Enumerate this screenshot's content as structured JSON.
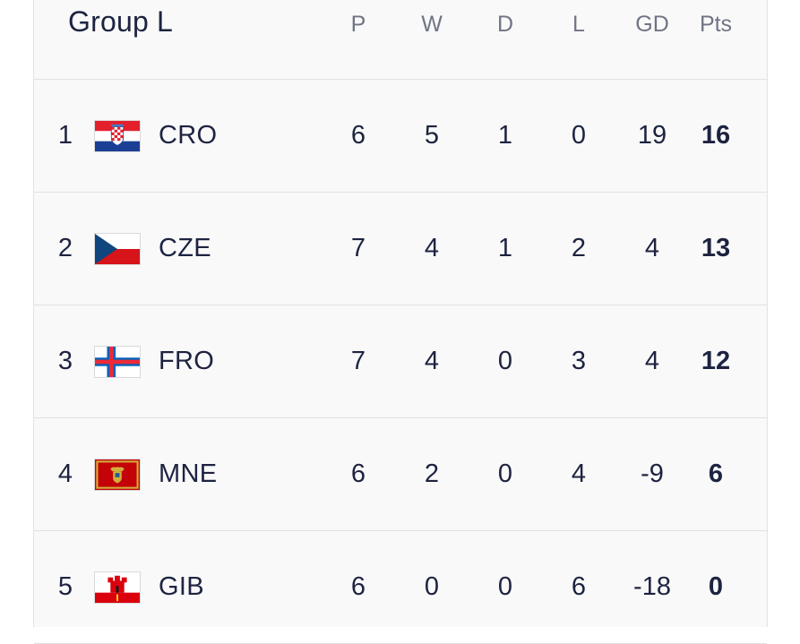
{
  "table": {
    "title": "Group L",
    "columns": [
      "P",
      "W",
      "D",
      "L",
      "GD",
      "Pts"
    ],
    "rows": [
      {
        "pos": "1",
        "team": "CRO",
        "flag_icon": "croatia-flag-icon",
        "p": "6",
        "w": "5",
        "d": "1",
        "l": "0",
        "gd": "19",
        "pts": "16"
      },
      {
        "pos": "2",
        "team": "CZE",
        "flag_icon": "czechia-flag-icon",
        "p": "7",
        "w": "4",
        "d": "1",
        "l": "2",
        "gd": "4",
        "pts": "13"
      },
      {
        "pos": "3",
        "team": "FRO",
        "flag_icon": "faroe-islands-flag-icon",
        "p": "7",
        "w": "4",
        "d": "0",
        "l": "3",
        "gd": "4",
        "pts": "12"
      },
      {
        "pos": "4",
        "team": "MNE",
        "flag_icon": "montenegro-flag-icon",
        "p": "6",
        "w": "2",
        "d": "0",
        "l": "4",
        "gd": "-9",
        "pts": "6"
      },
      {
        "pos": "5",
        "team": "GIB",
        "flag_icon": "gibraltar-flag-icon",
        "p": "6",
        "w": "0",
        "d": "0",
        "l": "6",
        "gd": "-18",
        "pts": "0"
      }
    ]
  },
  "colors": {
    "text": "#1d2340",
    "header_text": "#707585",
    "background": "#f9f9f9",
    "divider": "#e1e1e1"
  }
}
